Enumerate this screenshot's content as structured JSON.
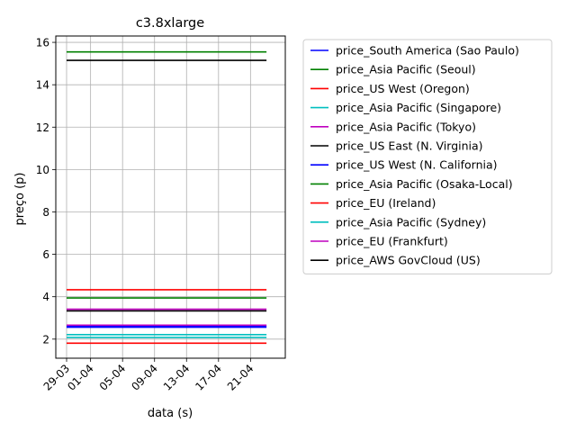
{
  "chart_data": {
    "type": "line",
    "title": "c3.8xlarge",
    "xlabel": "data (s)",
    "ylabel": "preço (p)",
    "x_range": [
      "2017-03-29",
      "2017-04-24"
    ],
    "x": [
      "2017-03-29",
      "2017-04-23"
    ],
    "xticks": [
      {
        "date": "2017-03-29",
        "label": "29-03"
      },
      {
        "date": "2017-04-01",
        "label": "01-04"
      },
      {
        "date": "2017-04-05",
        "label": "05-04"
      },
      {
        "date": "2017-04-09",
        "label": "09-04"
      },
      {
        "date": "2017-04-13",
        "label": "13-04"
      },
      {
        "date": "2017-04-17",
        "label": "17-04"
      },
      {
        "date": "2017-04-21",
        "label": "21-04"
      }
    ],
    "ylim": [
      1.1,
      16.3
    ],
    "yticks": [
      2,
      4,
      6,
      8,
      10,
      12,
      14,
      16
    ],
    "grid": true,
    "legend_position": "outside-right",
    "series": [
      {
        "name": "price_South America (Sao Paulo)",
        "color": "#0000ff",
        "values": [
          2.61,
          2.61
        ]
      },
      {
        "name": "price_Asia Pacific (Seoul)",
        "color": "#008000",
        "values": [
          15.55,
          15.55
        ]
      },
      {
        "name": "price_US West (Oregon)",
        "color": "#ff0000",
        "values": [
          4.33,
          4.33
        ]
      },
      {
        "name": "price_Asia Pacific (Singapore)",
        "color": "#00bfbf",
        "values": [
          2.21,
          2.21
        ]
      },
      {
        "name": "price_Asia Pacific (Tokyo)",
        "color": "#bf00bf",
        "values": [
          2.66,
          2.66
        ]
      },
      {
        "name": "price_US East (N. Virginia)",
        "color": "#000000",
        "values": [
          15.15,
          15.15
        ]
      },
      {
        "name": "price_US West (N. California)",
        "color": "#0000ff",
        "values": [
          2.56,
          2.56
        ]
      },
      {
        "name": "price_Asia Pacific (Osaka-Local)",
        "color": "#008000",
        "values": [
          3.94,
          3.94
        ]
      },
      {
        "name": "price_EU (Ireland)",
        "color": "#ff0000",
        "values": [
          1.81,
          1.81
        ]
      },
      {
        "name": "price_Asia Pacific (Sydney)",
        "color": "#00bfbf",
        "values": [
          2.08,
          2.08
        ]
      },
      {
        "name": "price_EU (Frankfurt)",
        "color": "#bf00bf",
        "values": [
          3.41,
          3.41
        ]
      },
      {
        "name": "price_AWS GovCloud (US)",
        "color": "#000000",
        "values": [
          3.33,
          3.33
        ]
      }
    ]
  }
}
